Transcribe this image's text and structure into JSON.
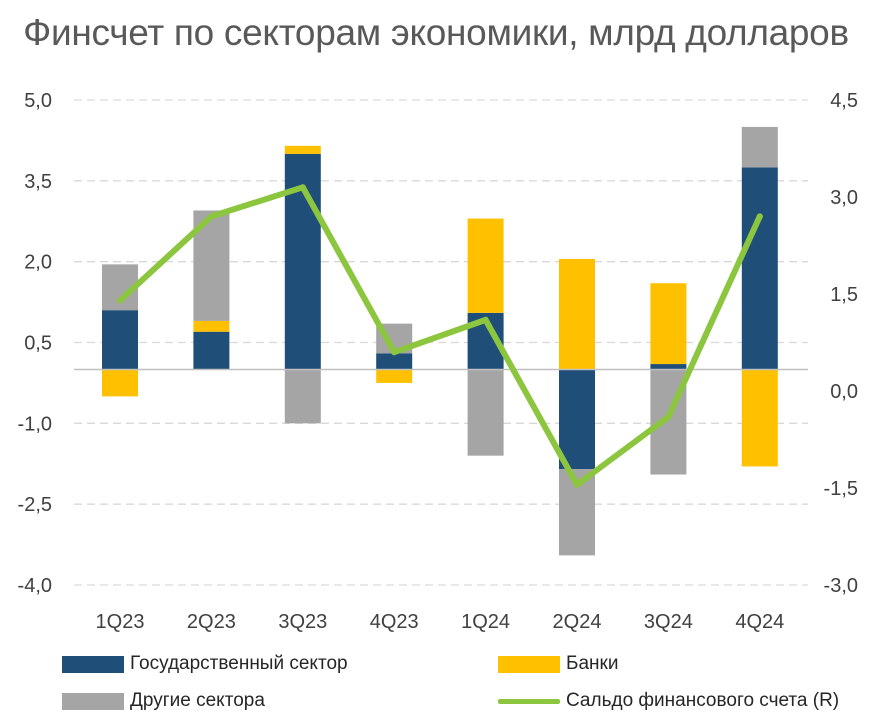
{
  "chart_data": {
    "type": "bar",
    "title": "Финсчет по секторам экономики, млрд долларов",
    "categories": [
      "1Q23",
      "2Q23",
      "3Q23",
      "4Q23",
      "1Q24",
      "2Q24",
      "3Q24",
      "4Q24"
    ],
    "stacked": true,
    "series": [
      {
        "name": "Государственный сектор",
        "type": "bar",
        "axis": "left",
        "color": "#1F4E79",
        "values": [
          1.1,
          0.7,
          4.0,
          0.3,
          1.05,
          -1.85,
          0.1,
          3.75
        ]
      },
      {
        "name": "Банки",
        "type": "bar",
        "axis": "left",
        "color": "#FFC000",
        "values": [
          -0.5,
          0.2,
          0.15,
          -0.25,
          1.75,
          2.05,
          1.5,
          -1.8
        ]
      },
      {
        "name": "Другие сектора",
        "type": "bar",
        "axis": "left",
        "color": "#A5A5A5",
        "values": [
          0.85,
          2.05,
          -1.0,
          0.55,
          -1.6,
          -1.6,
          -1.95,
          0.75
        ]
      },
      {
        "name": "Сальдо финансового счета (R)",
        "type": "line",
        "axis": "right",
        "color": "#8CC63F",
        "values": [
          1.4,
          2.7,
          3.15,
          0.6,
          1.1,
          -1.45,
          -0.4,
          2.7
        ]
      }
    ],
    "y_left": {
      "min": -4.0,
      "max": 5.0,
      "ticks": [
        "5,0",
        "3,5",
        "2,0",
        "0,5",
        "-1,0",
        "-2,5",
        "-4,0"
      ],
      "tick_values": [
        5.0,
        3.5,
        2.0,
        0.5,
        -1.0,
        -2.5,
        -4.0
      ]
    },
    "y_right": {
      "min": -3.0,
      "max": 4.5,
      "ticks": [
        "4,5",
        "3,0",
        "1,5",
        "0,0",
        "-1,5",
        "-3,0"
      ],
      "tick_values": [
        4.5,
        3.0,
        1.5,
        0.0,
        -1.5,
        -3.0
      ]
    },
    "grid": true,
    "legend_position": "bottom"
  }
}
